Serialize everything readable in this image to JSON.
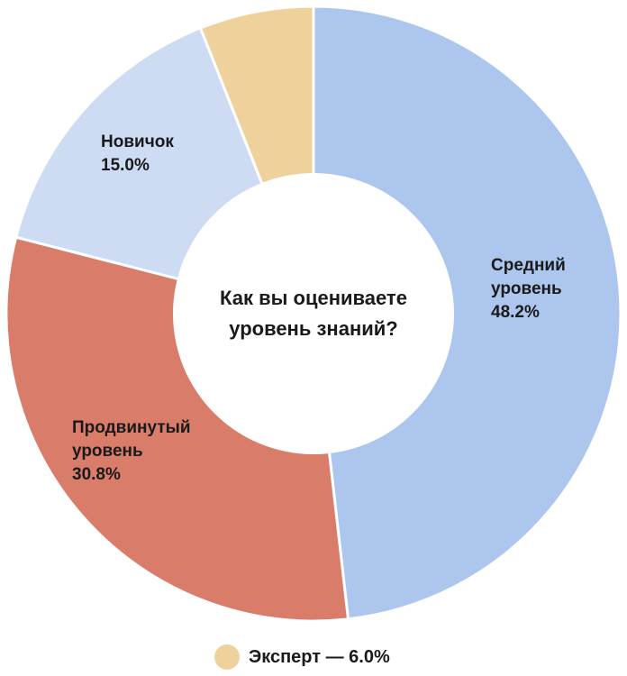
{
  "chart_data": {
    "type": "pie",
    "title": "Как вы оцениваете уровень знаний?",
    "title_lines": [
      "Как вы оцениваете",
      "уровень знаний?"
    ],
    "slices": [
      {
        "name": "Средний уровень",
        "label_lines": [
          "Средний",
          "уровень"
        ],
        "value": 48.2,
        "value_label": "48.2%",
        "color": "#adc6ee"
      },
      {
        "name": "Продвинутый уровень",
        "label_lines": [
          "Продвинутый",
          "уровень"
        ],
        "value": 30.8,
        "value_label": "30.8%",
        "color": "#d97c6a"
      },
      {
        "name": "Новичок",
        "label_lines": [
          "Новичок"
        ],
        "value": 15.0,
        "value_label": "15.0%",
        "color": "#cddcf3"
      },
      {
        "name": "Эксперт",
        "label_lines": [],
        "value": 6.0,
        "value_label": "6.0%",
        "color": "#efd29b"
      }
    ],
    "legend": {
      "text": "Эксперт — 6.0%",
      "color": "#efd29b",
      "placement": "bottom"
    },
    "donut": true
  }
}
